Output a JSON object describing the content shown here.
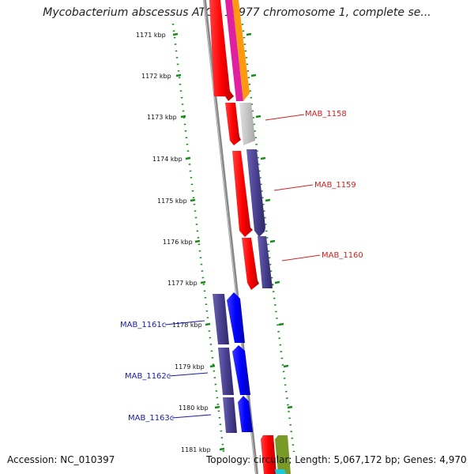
{
  "title": "Mycobacterium abscessus ATCC 19977 chromosome 1, complete se...",
  "footer": {
    "accession": "Accession: NC_010397",
    "stats": "Topology: circular; Length: 5,067,172 bp; Genes: 4,970"
  },
  "ticks": [
    "1171 kbp",
    "1172 kbp",
    "1173 kbp",
    "1174 kbp",
    "1175 kbp",
    "1176 kbp",
    "1177 kbp",
    "1178 kbp",
    "1179 kbp",
    "1180 kbp",
    "1181 kbp"
  ],
  "genes": [
    {
      "label": "MAB_1158",
      "strand": "forward",
      "color": "#d42020"
    },
    {
      "label": "MAB_1159",
      "strand": "forward",
      "color": "#d42020"
    },
    {
      "label": "MAB_1160",
      "strand": "forward",
      "color": "#d42020"
    },
    {
      "label": "MAB_1161c",
      "strand": "reverse",
      "color": "#1a1aa8"
    },
    {
      "label": "MAB_1162c",
      "strand": "reverse",
      "color": "#1a1aa8"
    },
    {
      "label": "MAB_1163c",
      "strand": "reverse",
      "color": "#1a1aa8"
    }
  ],
  "colors": {
    "cds_red": "#ff0000",
    "cds_blue": "#0000ff",
    "gene_purple": "#4a4090",
    "tick_green": "#1a8a1a",
    "backbone": "#888888"
  }
}
